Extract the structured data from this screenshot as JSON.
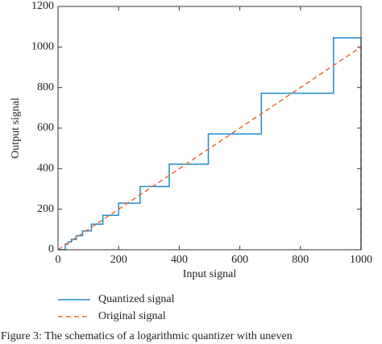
{
  "chart_data": {
    "type": "line",
    "x_label": "Input signal",
    "y_label": "Output signal",
    "caption": "Figure 3: The schematics of a logarithmic quantizer with uneven",
    "xlim": [
      0,
      1000
    ],
    "ylim": [
      0,
      1200
    ],
    "xticks": [
      0,
      200,
      400,
      600,
      800,
      1000
    ],
    "yticks": [
      0,
      200,
      400,
      600,
      800,
      1000,
      1200
    ],
    "legend": "below",
    "series": [
      {
        "name": "Quantized signal",
        "color": "#1f8bc9",
        "dashed": false,
        "x": [
          0,
          24,
          24,
          33,
          33,
          44,
          44,
          60,
          60,
          81,
          81,
          110,
          110,
          148,
          148,
          200,
          200,
          271,
          271,
          367,
          367,
          496,
          496,
          671,
          671,
          909,
          909,
          1000,
          1000
        ],
        "values": [
          0,
          0,
          28,
          28,
          38,
          38,
          51,
          51,
          69,
          69,
          93,
          93,
          126,
          126,
          170,
          170,
          230,
          230,
          312,
          312,
          422,
          422,
          571,
          571,
          772,
          772,
          1045,
          1045,
          0
        ]
      },
      {
        "name": "Original signal",
        "color": "#e8692d",
        "dashed": true,
        "x": [
          0,
          1000,
          1000
        ],
        "values": [
          0,
          1000,
          0
        ]
      }
    ]
  }
}
